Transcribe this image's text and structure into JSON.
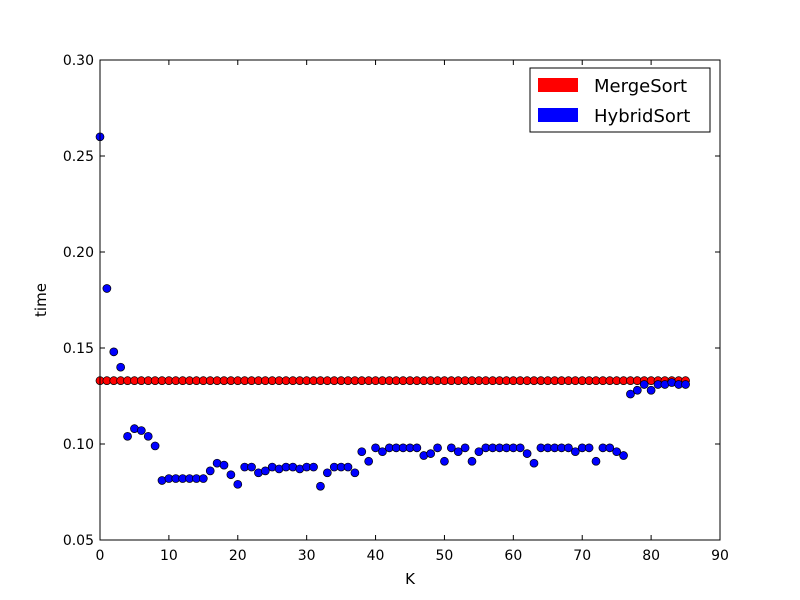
{
  "chart_data": {
    "type": "scatter",
    "title": "",
    "xlabel": "K",
    "ylabel": "time",
    "xlim": [
      0,
      90
    ],
    "ylim": [
      0.05,
      0.3
    ],
    "xticks": [
      "0",
      "10",
      "20",
      "30",
      "40",
      "50",
      "60",
      "70",
      "80",
      "90"
    ],
    "yticks": [
      "0.05",
      "0.10",
      "0.15",
      "0.20",
      "0.25",
      "0.30"
    ],
    "grid": false,
    "legend_position": "top-right",
    "series": [
      {
        "name": "MergeSort",
        "color": "#ff0000",
        "x": [
          0,
          1,
          2,
          3,
          4,
          5,
          6,
          7,
          8,
          9,
          10,
          11,
          12,
          13,
          14,
          15,
          16,
          17,
          18,
          19,
          20,
          21,
          22,
          23,
          24,
          25,
          26,
          27,
          28,
          29,
          30,
          31,
          32,
          33,
          34,
          35,
          36,
          37,
          38,
          39,
          40,
          41,
          42,
          43,
          44,
          45,
          46,
          47,
          48,
          49,
          50,
          51,
          52,
          53,
          54,
          55,
          56,
          57,
          58,
          59,
          60,
          61,
          62,
          63,
          64,
          65,
          66,
          67,
          68,
          69,
          70,
          71,
          72,
          73,
          74,
          75,
          76,
          77,
          78,
          79,
          80,
          81,
          82,
          83,
          84,
          85
        ],
        "y": [
          0.133,
          0.133,
          0.133,
          0.133,
          0.133,
          0.133,
          0.133,
          0.133,
          0.133,
          0.133,
          0.133,
          0.133,
          0.133,
          0.133,
          0.133,
          0.133,
          0.133,
          0.133,
          0.133,
          0.133,
          0.133,
          0.133,
          0.133,
          0.133,
          0.133,
          0.133,
          0.133,
          0.133,
          0.133,
          0.133,
          0.133,
          0.133,
          0.133,
          0.133,
          0.133,
          0.133,
          0.133,
          0.133,
          0.133,
          0.133,
          0.133,
          0.133,
          0.133,
          0.133,
          0.133,
          0.133,
          0.133,
          0.133,
          0.133,
          0.133,
          0.133,
          0.133,
          0.133,
          0.133,
          0.133,
          0.133,
          0.133,
          0.133,
          0.133,
          0.133,
          0.133,
          0.133,
          0.133,
          0.133,
          0.133,
          0.133,
          0.133,
          0.133,
          0.133,
          0.133,
          0.133,
          0.133,
          0.133,
          0.133,
          0.133,
          0.133,
          0.133,
          0.133,
          0.133,
          0.133,
          0.133,
          0.133,
          0.133,
          0.133,
          0.133,
          0.133
        ]
      },
      {
        "name": "HybridSort",
        "color": "#0000ff",
        "x": [
          0,
          1,
          2,
          3,
          4,
          5,
          6,
          7,
          8,
          9,
          10,
          11,
          12,
          13,
          14,
          15,
          16,
          17,
          18,
          19,
          20,
          21,
          22,
          23,
          24,
          25,
          26,
          27,
          28,
          29,
          30,
          31,
          32,
          33,
          34,
          35,
          36,
          37,
          38,
          39,
          40,
          41,
          42,
          43,
          44,
          45,
          46,
          47,
          48,
          49,
          50,
          51,
          52,
          53,
          54,
          55,
          56,
          57,
          58,
          59,
          60,
          61,
          62,
          63,
          64,
          65,
          66,
          67,
          68,
          69,
          70,
          71,
          72,
          73,
          74,
          75,
          76,
          77,
          78,
          79,
          80,
          81,
          82,
          83,
          84,
          85
        ],
        "y": [
          0.26,
          0.181,
          0.148,
          0.14,
          0.104,
          0.108,
          0.107,
          0.104,
          0.099,
          0.081,
          0.082,
          0.082,
          0.082,
          0.082,
          0.082,
          0.082,
          0.086,
          0.09,
          0.089,
          0.084,
          0.079,
          0.088,
          0.088,
          0.085,
          0.086,
          0.088,
          0.087,
          0.088,
          0.088,
          0.087,
          0.088,
          0.088,
          0.078,
          0.085,
          0.088,
          0.088,
          0.088,
          0.085,
          0.096,
          0.091,
          0.098,
          0.096,
          0.098,
          0.098,
          0.098,
          0.098,
          0.098,
          0.094,
          0.095,
          0.098,
          0.091,
          0.098,
          0.096,
          0.098,
          0.091,
          0.096,
          0.098,
          0.098,
          0.098,
          0.098,
          0.098,
          0.098,
          0.095,
          0.09,
          0.098,
          0.098,
          0.098,
          0.098,
          0.098,
          0.096,
          0.098,
          0.098,
          0.091,
          0.098,
          0.098,
          0.096,
          0.094,
          0.126,
          0.128,
          0.131,
          0.128,
          0.131,
          0.131,
          0.132,
          0.131,
          0.131
        ]
      }
    ]
  }
}
